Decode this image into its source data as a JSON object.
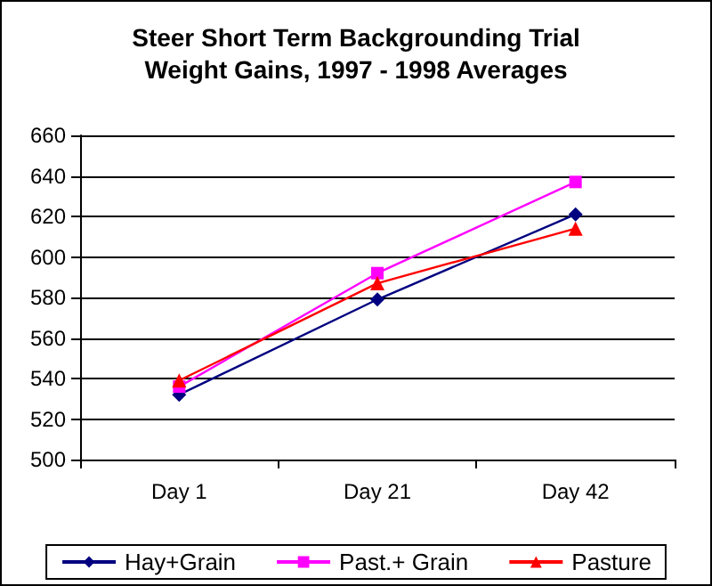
{
  "chart_data": {
    "type": "line",
    "title": "Steer Short Term Backgrounding Trial\nWeight Gains, 1997 - 1998 Averages",
    "categories": [
      "Day 1",
      "Day 21",
      "Day 42"
    ],
    "series": [
      {
        "name": "Hay+Grain",
        "color": "#000080",
        "marker": "diamond",
        "values": [
          532,
          579,
          621
        ]
      },
      {
        "name": "Past.+ Grain",
        "color": "#ff00ff",
        "marker": "square",
        "values": [
          536,
          592,
          637
        ]
      },
      {
        "name": "Pasture",
        "color": "#ff0000",
        "marker": "triangle",
        "values": [
          539,
          587,
          614
        ]
      }
    ],
    "ylim": [
      500,
      660
    ],
    "yticks": [
      500,
      520,
      540,
      560,
      580,
      600,
      620,
      640,
      660
    ],
    "grid": "y",
    "legend": "bottom"
  }
}
